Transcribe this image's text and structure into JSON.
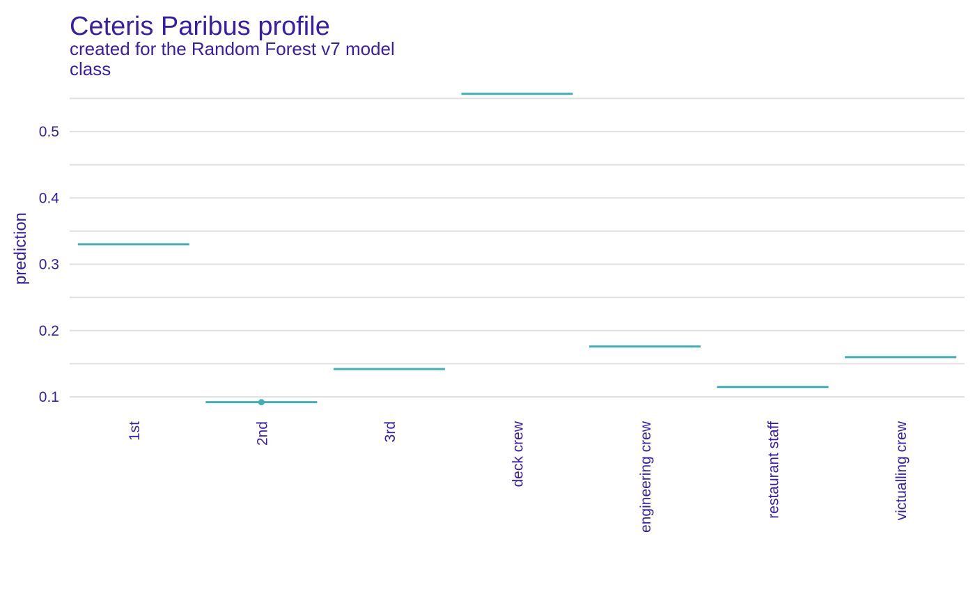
{
  "chart_data": {
    "type": "line",
    "title": "Ceteris Paribus profile",
    "subtitle": "created for the Random Forest v7 model",
    "facet_label": "class",
    "xlabel": "",
    "ylabel": "prediction",
    "categories": [
      "1st",
      "2nd",
      "3rd",
      "deck crew",
      "engineering crew",
      "restaurant staff",
      "victualling crew"
    ],
    "values": [
      0.33,
      0.092,
      0.142,
      0.557,
      0.176,
      0.115,
      0.16
    ],
    "observation": {
      "category": "2nd",
      "value": 0.092
    },
    "yticks": [
      0.1,
      0.2,
      0.3,
      0.4,
      0.5
    ],
    "ylim": [
      0.069,
      0.565
    ],
    "grid": true,
    "colors": {
      "line": "#3dafb5",
      "text": "#371ea3",
      "grid": "#e1e1e1"
    }
  }
}
